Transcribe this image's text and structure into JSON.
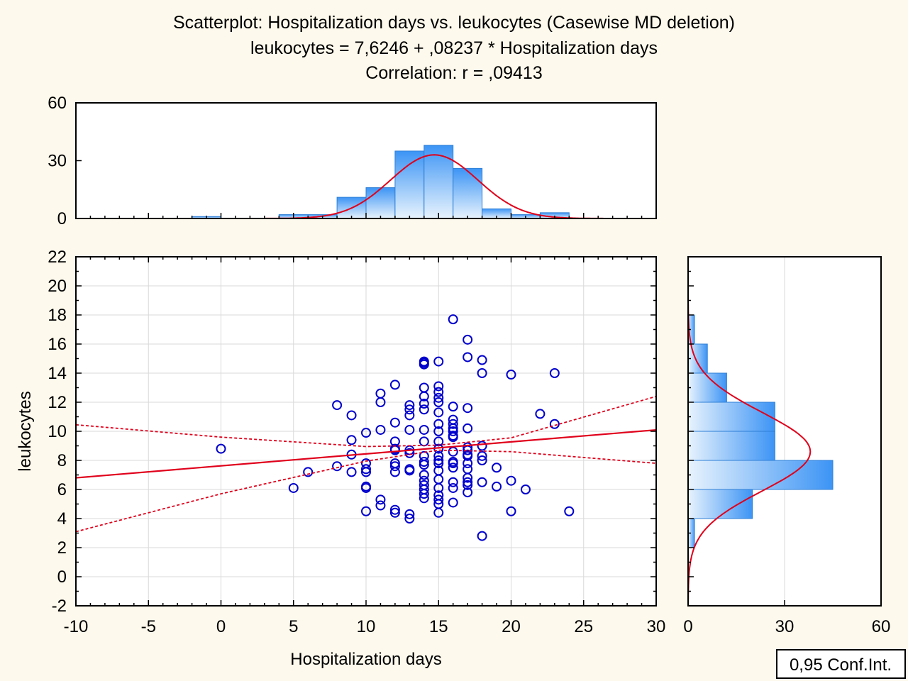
{
  "colors": {
    "background": "#fdf9ec",
    "marker": "#0000cc",
    "regression": "#e0001b",
    "bar_fill_light": "#e8f3fd",
    "bar_fill_dark": "#3c94f5",
    "bar_stroke": "#2f7fd6",
    "grid": "#d9d9d9"
  },
  "chart_data": {
    "type": "scatter",
    "title": [
      "Scatterplot: Hospitalization days vs. leukocytes (Casewise MD deletion)",
      "leukocytes = 7,6246 + ,08237 * Hospitalization days",
      "Correlation: r = ,09413"
    ],
    "xlabel": "Hospitalization days",
    "ylabel": "leukocytes",
    "xlim": [
      -10,
      30
    ],
    "ylim": [
      -2,
      22
    ],
    "x_ticks": [
      "-10",
      "-5",
      "0",
      "5",
      "10",
      "15",
      "20",
      "25",
      "30"
    ],
    "y_ticks": [
      "-2",
      "0",
      "2",
      "4",
      "6",
      "8",
      "10",
      "12",
      "14",
      "16",
      "18",
      "20",
      "22"
    ],
    "regression": {
      "intercept": 7.6246,
      "slope": 0.08237
    },
    "confidence_band": {
      "x": [
        -10,
        0,
        10,
        15,
        20,
        30
      ],
      "upper": [
        10.45,
        9.6,
        8.95,
        9.05,
        9.55,
        12.4
      ],
      "lower": [
        3.1,
        5.7,
        7.95,
        8.7,
        8.6,
        7.8
      ]
    },
    "legend": "0,95 Conf.Int.",
    "points": [
      [
        0,
        8.8
      ],
      [
        5,
        6.1
      ],
      [
        6,
        7.2
      ],
      [
        8,
        7.6
      ],
      [
        8,
        11.8
      ],
      [
        9,
        11.1
      ],
      [
        9,
        9.4
      ],
      [
        9,
        8.4
      ],
      [
        9,
        7.2
      ],
      [
        10,
        9.9
      ],
      [
        10,
        7.8
      ],
      [
        10,
        7.4
      ],
      [
        10,
        7.2
      ],
      [
        10,
        6.2
      ],
      [
        10,
        6.1
      ],
      [
        10,
        4.5
      ],
      [
        11,
        12.6
      ],
      [
        11,
        12.0
      ],
      [
        11,
        10.1
      ],
      [
        11,
        5.3
      ],
      [
        11,
        4.9
      ],
      [
        12,
        13.2
      ],
      [
        12,
        10.6
      ],
      [
        12,
        9.3
      ],
      [
        12,
        8.8
      ],
      [
        12,
        8.7
      ],
      [
        12,
        7.8
      ],
      [
        12,
        7.6
      ],
      [
        12,
        7.2
      ],
      [
        12,
        4.6
      ],
      [
        12,
        4.4
      ],
      [
        13,
        11.8
      ],
      [
        13,
        11.5
      ],
      [
        13,
        11.1
      ],
      [
        13,
        10.1
      ],
      [
        13,
        8.7
      ],
      [
        13,
        8.5
      ],
      [
        13,
        7.4
      ],
      [
        13,
        7.3
      ],
      [
        13,
        4.3
      ],
      [
        13,
        4.0
      ],
      [
        14,
        14.8
      ],
      [
        14,
        14.7
      ],
      [
        14,
        14.6
      ],
      [
        14,
        13.0
      ],
      [
        14,
        12.4
      ],
      [
        14,
        11.9
      ],
      [
        14,
        11.5
      ],
      [
        14,
        10.1
      ],
      [
        14,
        9.3
      ],
      [
        14,
        8.3
      ],
      [
        14,
        7.9
      ],
      [
        14,
        7.7
      ],
      [
        14,
        7.0
      ],
      [
        14,
        6.6
      ],
      [
        14,
        6.3
      ],
      [
        14,
        6.0
      ],
      [
        14,
        5.7
      ],
      [
        14,
        5.4
      ],
      [
        15,
        14.8
      ],
      [
        15,
        13.1
      ],
      [
        15,
        12.7
      ],
      [
        15,
        12.3
      ],
      [
        15,
        12.0
      ],
      [
        15,
        11.3
      ],
      [
        15,
        10.5
      ],
      [
        15,
        10.0
      ],
      [
        15,
        9.3
      ],
      [
        15,
        8.8
      ],
      [
        15,
        8.3
      ],
      [
        15,
        8.0
      ],
      [
        15,
        7.8
      ],
      [
        15,
        7.3
      ],
      [
        15,
        6.7
      ],
      [
        15,
        6.1
      ],
      [
        15,
        5.6
      ],
      [
        15,
        5.3
      ],
      [
        15,
        5.0
      ],
      [
        15,
        4.4
      ],
      [
        16,
        17.7
      ],
      [
        16,
        11.7
      ],
      [
        16,
        10.8
      ],
      [
        16,
        10.5
      ],
      [
        16,
        10.2
      ],
      [
        16,
        10.0
      ],
      [
        16,
        9.7
      ],
      [
        16,
        9.6
      ],
      [
        16,
        8.6
      ],
      [
        16,
        7.9
      ],
      [
        16,
        7.8
      ],
      [
        16,
        7.5
      ],
      [
        16,
        6.5
      ],
      [
        16,
        6.1
      ],
      [
        16,
        5.1
      ],
      [
        17,
        16.3
      ],
      [
        17,
        15.1
      ],
      [
        17,
        11.6
      ],
      [
        17,
        10.2
      ],
      [
        17,
        8.9
      ],
      [
        17,
        8.7
      ],
      [
        17,
        8.4
      ],
      [
        17,
        8.3
      ],
      [
        17,
        7.8
      ],
      [
        17,
        7.4
      ],
      [
        17,
        6.8
      ],
      [
        17,
        6.5
      ],
      [
        17,
        6.3
      ],
      [
        17,
        5.8
      ],
      [
        18,
        14.9
      ],
      [
        18,
        14.0
      ],
      [
        18,
        9.0
      ],
      [
        18,
        8.3
      ],
      [
        18,
        8.0
      ],
      [
        18,
        6.5
      ],
      [
        18,
        2.8
      ],
      [
        19,
        7.5
      ],
      [
        19,
        6.2
      ],
      [
        20,
        13.9
      ],
      [
        20,
        6.6
      ],
      [
        20,
        4.5
      ],
      [
        21,
        6.0
      ],
      [
        22,
        11.2
      ],
      [
        23,
        14.0
      ],
      [
        23,
        10.5
      ],
      [
        24,
        4.5
      ]
    ],
    "top_histogram": {
      "ylim": [
        0,
        60
      ],
      "y_ticks": [
        "0",
        "30",
        "60"
      ],
      "bins": [
        {
          "from": -2,
          "to": 0,
          "count": 1
        },
        {
          "from": 4,
          "to": 6,
          "count": 2
        },
        {
          "from": 6,
          "to": 8,
          "count": 2
        },
        {
          "from": 8,
          "to": 10,
          "count": 11
        },
        {
          "from": 10,
          "to": 12,
          "count": 16
        },
        {
          "from": 12,
          "to": 14,
          "count": 35
        },
        {
          "from": 14,
          "to": 16,
          "count": 38
        },
        {
          "from": 16,
          "to": 18,
          "count": 26
        },
        {
          "from": 18,
          "to": 20,
          "count": 5
        },
        {
          "from": 20,
          "to": 22,
          "count": 2
        },
        {
          "from": 22,
          "to": 24,
          "count": 3
        }
      ],
      "normal_curve": {
        "mean": 14.7,
        "sd": 3.0,
        "peak": 33
      }
    },
    "right_histogram": {
      "xlim": [
        0,
        60
      ],
      "x_ticks": [
        "0",
        "30",
        "60"
      ],
      "bins": [
        {
          "from": 2,
          "to": 4,
          "count": 2
        },
        {
          "from": 4,
          "to": 6,
          "count": 20
        },
        {
          "from": 6,
          "to": 8,
          "count": 45
        },
        {
          "from": 8,
          "to": 10,
          "count": 27
        },
        {
          "from": 10,
          "to": 12,
          "count": 27
        },
        {
          "from": 12,
          "to": 14,
          "count": 12
        },
        {
          "from": 14,
          "to": 16,
          "count": 6
        },
        {
          "from": 16,
          "to": 18,
          "count": 2
        }
      ],
      "normal_curve": {
        "mean": 8.6,
        "sd": 2.7,
        "peak": 38
      }
    }
  }
}
